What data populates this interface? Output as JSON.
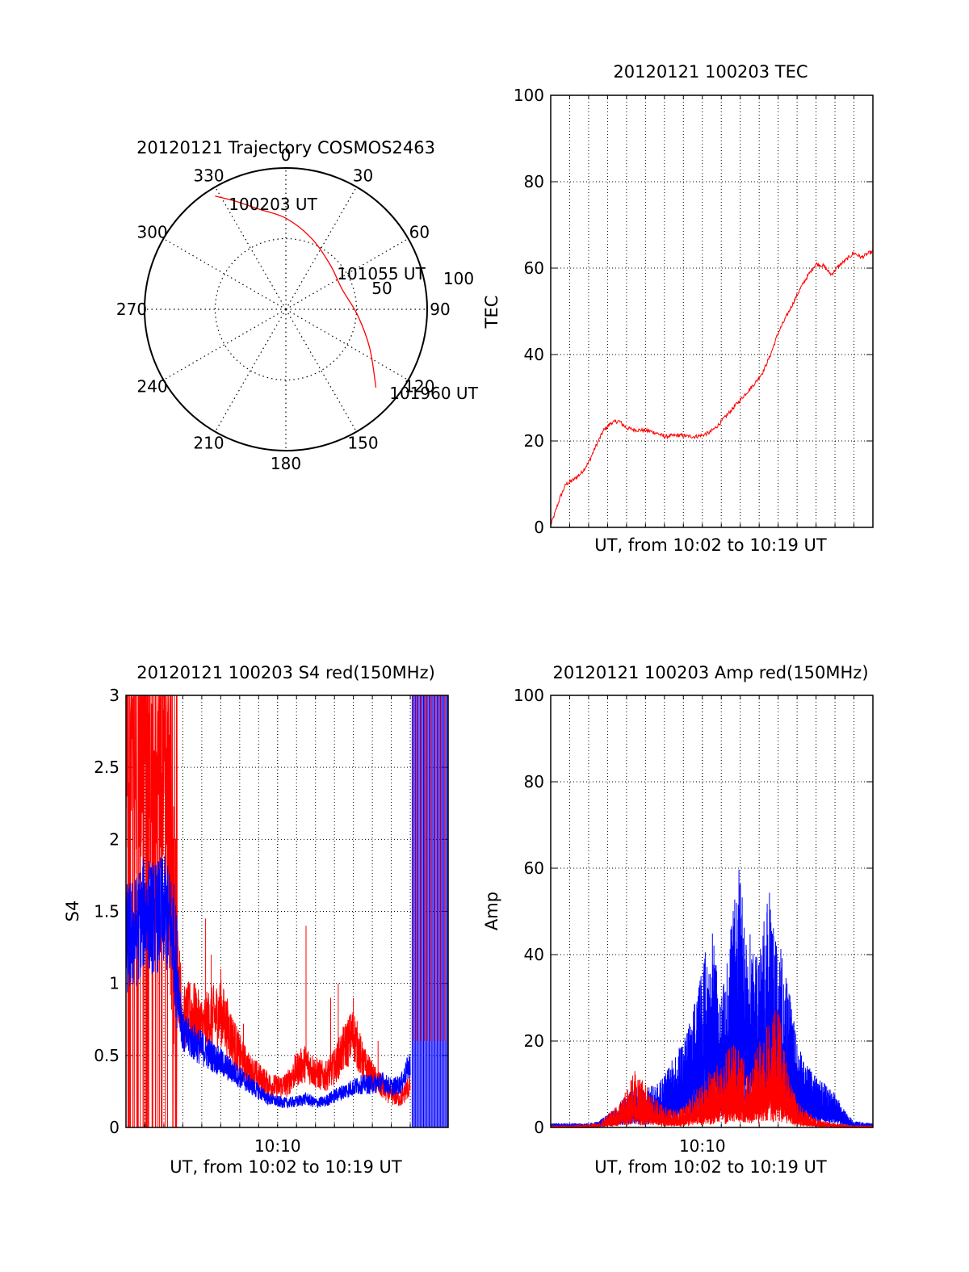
{
  "colors": {
    "red": "#ff0000",
    "blue": "#0000ff",
    "axis": "#000000",
    "grid": "#000000"
  },
  "chart_data": [
    {
      "type": "polar",
      "title": "20120121 Trajectory COSMOS2463",
      "grid": true,
      "azimuth_labels": [
        "0",
        "30",
        "60",
        "90",
        "120",
        "150",
        "180",
        "210",
        "240",
        "270",
        "300",
        "330"
      ],
      "radial_labels": [
        "50",
        "100"
      ],
      "annotations": [
        "100203 UT",
        "101055 UT",
        "101960 UT"
      ],
      "trajectory": {
        "color": "red",
        "points": [
          {
            "az": 328,
            "el": 5
          },
          {
            "az": 335,
            "el": 14
          },
          {
            "az": 345,
            "el": 24
          },
          {
            "az": 0,
            "el": 32
          },
          {
            "az": 20,
            "el": 42
          },
          {
            "az": 45,
            "el": 50
          },
          {
            "az": 70,
            "el": 52
          },
          {
            "az": 95,
            "el": 44
          },
          {
            "az": 115,
            "el": 31
          },
          {
            "az": 131,
            "el": 14
          }
        ]
      }
    },
    {
      "type": "line",
      "title": "20120121 100203 TEC",
      "xlabel": "UT, from 10:02 to 10:19 UT",
      "ylabel": "TEC",
      "xlim": [
        0,
        17
      ],
      "ylim": [
        0,
        100
      ],
      "yticks": [
        "0",
        "20",
        "40",
        "60",
        "80",
        "100"
      ],
      "grid": true,
      "series": [
        {
          "color": "red",
          "x": [
            0,
            0.2,
            0.5,
            0.8,
            1.2,
            1.6,
            2.0,
            2.4,
            2.8,
            3.2,
            3.6,
            4.0,
            4.4,
            4.8,
            5.2,
            5.6,
            6.0,
            6.4,
            6.8,
            7.2,
            7.6,
            8.0,
            8.4,
            8.8,
            9.2,
            9.6,
            10.0,
            10.4,
            10.8,
            11.2,
            11.6,
            12.0,
            12.4,
            12.8,
            13.2,
            13.6,
            14.0,
            14.4,
            14.8,
            15.2,
            15.6,
            16.0,
            16.4,
            16.8,
            17.0
          ],
          "y": [
            0.5,
            3,
            7,
            10,
            11,
            12.5,
            15,
            19,
            22.5,
            24.2,
            24.6,
            23,
            22.6,
            22.5,
            22.3,
            21.8,
            21,
            21.2,
            21.3,
            21.1,
            21.0,
            21.3,
            22,
            23.5,
            25.5,
            27.5,
            29.5,
            31.5,
            33.5,
            36,
            40,
            45,
            48.5,
            52,
            55.5,
            58.5,
            61,
            60.5,
            58.5,
            60.5,
            62,
            63.5,
            62.5,
            63.5,
            63.8
          ]
        }
      ]
    },
    {
      "type": "line",
      "title": "20120121 100203 S4 red(150MHz)",
      "xlabel": "UT, from 10:02 to 10:19 UT",
      "ylabel": "S4",
      "xlim": [
        0,
        17
      ],
      "ylim": [
        0,
        3
      ],
      "xticks": [
        "10:10"
      ],
      "yticks": [
        "0",
        "0.5",
        "1",
        "1.5",
        "2",
        "2.5",
        "3"
      ],
      "grid": true,
      "series": [
        {
          "color": "red",
          "x": [
            0,
            0.5,
            1.0,
            1.5,
            2.0,
            2.5,
            3.0,
            3.5,
            4.0,
            4.5,
            5.0,
            5.5,
            6.0,
            6.5,
            7.0,
            7.5,
            8.0,
            8.5,
            9.0,
            9.5,
            10.0,
            10.5,
            11.0,
            11.5,
            12.0,
            12.5,
            13.0,
            13.5,
            14.0,
            14.5,
            15.0
          ],
          "y": [
            2.6,
            2.3,
            2.9,
            2.2,
            2.7,
            1.4,
            0.75,
            0.8,
            0.7,
            0.75,
            0.8,
            0.65,
            0.5,
            0.4,
            0.35,
            0.3,
            0.28,
            0.3,
            0.4,
            0.45,
            0.38,
            0.35,
            0.42,
            0.55,
            0.65,
            0.45,
            0.35,
            0.28,
            0.22,
            0.2,
            0.3
          ],
          "spikes": [
            {
              "x": 4.5,
              "y": 1.2
            },
            {
              "x": 4.2,
              "y": 1.45
            },
            {
              "x": 5.0,
              "y": 1.1
            },
            {
              "x": 9.5,
              "y": 1.4
            },
            {
              "x": 10.8,
              "y": 0.9
            },
            {
              "x": 11.2,
              "y": 1.0
            },
            {
              "x": 12.0,
              "y": 0.9
            },
            {
              "x": 6.2,
              "y": 0.72
            },
            {
              "x": 13.3,
              "y": 0.6
            }
          ]
        },
        {
          "color": "blue",
          "x": [
            0,
            0.5,
            1.0,
            1.5,
            2.0,
            2.5,
            3.0,
            3.5,
            4.0,
            4.5,
            5.0,
            5.5,
            6.0,
            6.5,
            7.0,
            7.5,
            8.0,
            8.5,
            9.0,
            9.5,
            10.0,
            10.5,
            11.0,
            11.5,
            12.0,
            12.5,
            13.0,
            13.5,
            14.0,
            14.5,
            15.0
          ],
          "y": [
            1.3,
            1.35,
            1.5,
            1.45,
            1.5,
            1.35,
            0.65,
            0.6,
            0.55,
            0.5,
            0.45,
            0.4,
            0.35,
            0.3,
            0.25,
            0.2,
            0.18,
            0.17,
            0.18,
            0.2,
            0.17,
            0.18,
            0.22,
            0.25,
            0.28,
            0.3,
            0.3,
            0.32,
            0.28,
            0.3,
            0.45
          ]
        }
      ]
    },
    {
      "type": "line",
      "title": "20120121 100203 Amp red(150MHz)",
      "xlabel": "UT, from 10:02 to 10:19 UT",
      "ylabel": "Amp",
      "xlim": [
        0,
        17
      ],
      "ylim": [
        0,
        100
      ],
      "xticks": [
        "10:10"
      ],
      "yticks": [
        "0",
        "20",
        "40",
        "60",
        "80",
        "100"
      ],
      "grid": true,
      "series": [
        {
          "color": "red",
          "x": [
            0,
            1,
            2,
            2.5,
            3,
            3.5,
            4,
            4.5,
            5,
            5.5,
            6,
            6.5,
            7,
            7.5,
            8,
            8.5,
            9,
            9.5,
            10,
            10.5,
            11,
            11.5,
            12,
            12.5,
            13,
            13.5,
            14,
            14.5,
            15,
            16,
            17
          ],
          "y": [
            0.5,
            0.5,
            0.8,
            1,
            3,
            5,
            9,
            14,
            10,
            7,
            5,
            4,
            5,
            8,
            10,
            14,
            17,
            20,
            18,
            12,
            22,
            25,
            28,
            14,
            6,
            4,
            2,
            1.5,
            1,
            0.5,
            0.5
          ]
        },
        {
          "color": "blue",
          "x": [
            0,
            1,
            2,
            2.5,
            3,
            3.5,
            4,
            4.5,
            5,
            5.5,
            6,
            6.5,
            7,
            7.5,
            8,
            8.5,
            9,
            9.5,
            10,
            10.5,
            11,
            11.5,
            12,
            12.5,
            13,
            13.5,
            14,
            14.5,
            15,
            15.5,
            16,
            17
          ],
          "y": [
            1,
            1,
            1,
            1.5,
            3,
            5,
            8,
            10,
            9,
            10,
            12,
            17,
            20,
            27,
            38,
            47,
            30,
            48,
            62,
            48,
            40,
            56,
            45,
            35,
            20,
            15,
            12,
            10,
            8,
            4,
            1.5,
            1
          ]
        }
      ]
    }
  ]
}
